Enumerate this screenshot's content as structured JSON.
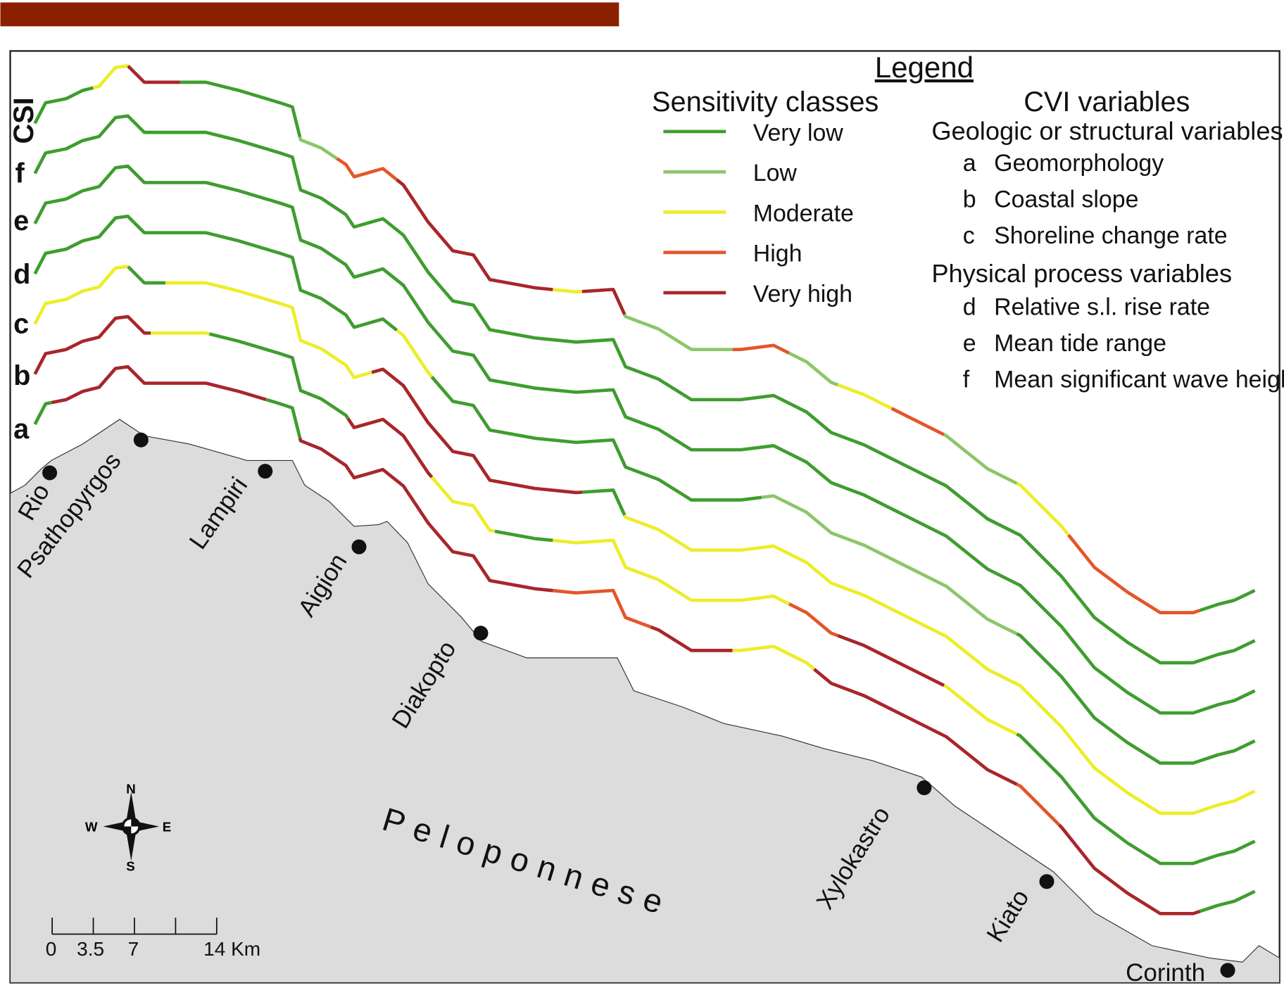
{
  "legend": {
    "title": "Legend",
    "sensitivity_title": "Sensitivity classes",
    "classes": [
      {
        "label": "Very low",
        "color": "#3f9d2f"
      },
      {
        "label": "Low",
        "color": "#8cc66a"
      },
      {
        "label": "Moderate",
        "color": "#eded2a"
      },
      {
        "label": "High",
        "color": "#e4562a"
      },
      {
        "label": "Very high",
        "color": "#a8262a"
      }
    ],
    "cvi_title": "CVI variables",
    "geologic_title": "Geologic or structural variables",
    "physical_title": "Physical process variables",
    "variables": [
      {
        "key": "a",
        "label": "Geomorphology"
      },
      {
        "key": "b",
        "label": "Coastal slope"
      },
      {
        "key": "c",
        "label": "Shoreline change rate"
      },
      {
        "key": "d",
        "label": "Relative s.l. rise rate"
      },
      {
        "key": "e",
        "label": "Mean tide range"
      },
      {
        "key": "f",
        "label": "Mean significant wave height"
      }
    ]
  },
  "rows": [
    "CSI",
    "f",
    "e",
    "d",
    "c",
    "b",
    "a"
  ],
  "towns": [
    "Rio",
    "Psathopyrgos",
    "Lampiri",
    "Aigion",
    "Diakopto",
    "Xylokastro",
    "Kiato",
    "Corinth"
  ],
  "region_label": "Peloponnese",
  "compass": {
    "n": "N",
    "s": "S",
    "e": "E",
    "w": "W"
  },
  "scale_bar": {
    "ticks": [
      "0",
      "3.5",
      "7",
      "14 Km"
    ]
  },
  "colors": {
    "header_bar": "#8b2000",
    "land": "#dcdcdc"
  }
}
